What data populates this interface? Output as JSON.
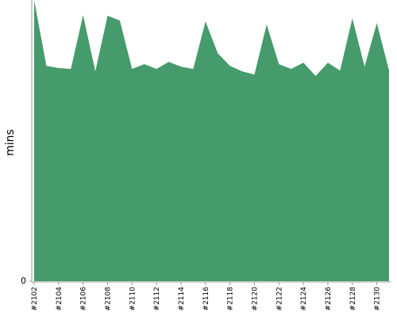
{
  "chart_data": {
    "type": "area",
    "y_label": "mins",
    "categories": [
      "#2102",
      null,
      "#2104",
      null,
      "#2106",
      null,
      "#2108",
      null,
      "#2110",
      null,
      "#2112",
      null,
      "#2114",
      null,
      "#2116",
      null,
      "#2118",
      null,
      "#2120",
      null,
      "#2122",
      null,
      "#2124",
      null,
      "#2126",
      null,
      "#2128",
      null,
      "#2130",
      null
    ],
    "values": [
      100,
      76.6,
      75.8,
      75.5,
      94.6,
      74.6,
      94.4,
      92.7,
      75.5,
      77.2,
      75.5,
      78.0,
      76.3,
      75.5,
      92.4,
      81.1,
      76.6,
      74.6,
      73.5,
      91.3,
      77.2,
      75.5,
      77.7,
      73.0,
      77.7,
      74.9,
      93.5,
      76.3,
      91.8,
      74.9
    ],
    "color": "#459b6b",
    "ylim": [
      0,
      100
    ],
    "yticks": [
      0
    ]
  }
}
